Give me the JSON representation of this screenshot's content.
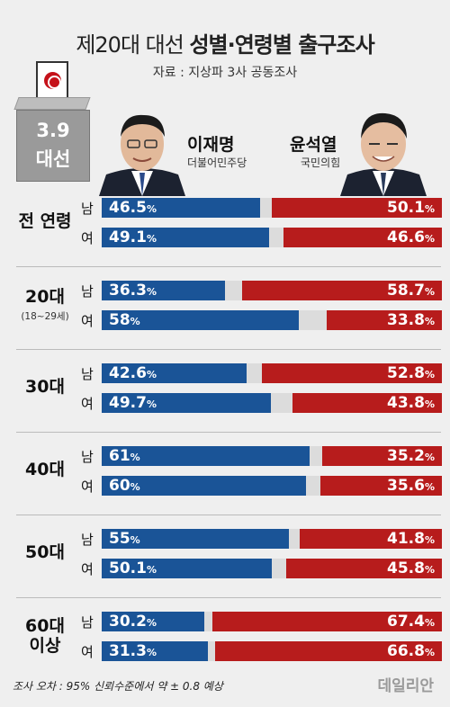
{
  "header": {
    "title_light": "제20대 대선 ",
    "title_bold": "성별·연령별 출구조사",
    "source": "자료 : 지상파 3사 공동조사"
  },
  "ballot_box": {
    "date": "3.9",
    "label": "대선"
  },
  "candidates": {
    "left": {
      "name": "이재명",
      "party": "더불어민주당",
      "color": "#1a5497"
    },
    "right": {
      "name": "윤석열",
      "party": "국민의힘",
      "color": "#b71c1c"
    }
  },
  "chart_data": {
    "type": "bar",
    "unit": "%",
    "series": [
      {
        "name": "이재명",
        "color": "#1a5497"
      },
      {
        "name": "윤석열",
        "color": "#b71c1c"
      }
    ],
    "groups": [
      {
        "label": "전 연령",
        "sublabel": "",
        "rows": [
          {
            "gender": "남",
            "left": "46.5",
            "right": "50.1"
          },
          {
            "gender": "여",
            "left": "49.1",
            "right": "46.6"
          }
        ]
      },
      {
        "label": "20대",
        "sublabel": "(18~29세)",
        "rows": [
          {
            "gender": "남",
            "left": "36.3",
            "right": "58.7"
          },
          {
            "gender": "여",
            "left": "58",
            "right": "33.8"
          }
        ]
      },
      {
        "label": "30대",
        "sublabel": "",
        "rows": [
          {
            "gender": "남",
            "left": "42.6",
            "right": "52.8"
          },
          {
            "gender": "여",
            "left": "49.7",
            "right": "43.8"
          }
        ]
      },
      {
        "label": "40대",
        "sublabel": "",
        "rows": [
          {
            "gender": "남",
            "left": "61",
            "right": "35.2"
          },
          {
            "gender": "여",
            "left": "60",
            "right": "35.6"
          }
        ]
      },
      {
        "label": "50대",
        "sublabel": "",
        "rows": [
          {
            "gender": "남",
            "left": "55",
            "right": "41.8"
          },
          {
            "gender": "여",
            "left": "50.1",
            "right": "45.8"
          }
        ]
      },
      {
        "label": "60대 이상",
        "sublabel": "",
        "rows": [
          {
            "gender": "남",
            "left": "30.2",
            "right": "67.4"
          },
          {
            "gender": "여",
            "left": "31.3",
            "right": "66.8"
          }
        ]
      }
    ]
  },
  "footnote": "조사 오차 : 95% 신뢰수준에서 약 ± 0.8 예상",
  "logo": "데일리안"
}
